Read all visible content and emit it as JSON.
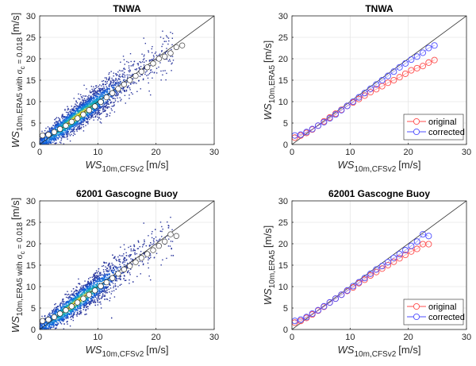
{
  "figure": {
    "panels": [
      {
        "id": "tnwa-scatter",
        "title": "TNWA",
        "kind": "density"
      },
      {
        "id": "tnwa-bins",
        "title": "TNWA",
        "kind": "bins"
      },
      {
        "id": "gascogne-scatter",
        "title": "62001 Gascogne Buoy",
        "kind": "density"
      },
      {
        "id": "gascogne-bins",
        "title": "62001 Gascogne Buoy",
        "kind": "bins"
      }
    ]
  },
  "chart_data": [
    {
      "type": "scatter",
      "title": "TNWA",
      "xlabel": {
        "main": "WS",
        "sub": "10m,CFSv2",
        "unit": "[m/s]"
      },
      "ylabel": {
        "main": "WS",
        "sub": "10m,ERA5 with σ",
        "sub2": "c",
        "extra": " = 0.018",
        "unit": "[m/s]"
      },
      "xlim": [
        0,
        30
      ],
      "ylim": [
        0,
        30
      ],
      "xticks": [
        "0",
        "10",
        "20",
        "30"
      ],
      "yticks": [
        "0",
        "5",
        "10",
        "15",
        "20",
        "25",
        "30"
      ],
      "grid": true,
      "colormap": "parula density",
      "reference_line": "1:1",
      "bin_means": {
        "x": [
          0.5,
          1.5,
          2.5,
          3.5,
          4.5,
          5.5,
          6.5,
          7.5,
          8.5,
          9.5,
          10.5,
          11.5,
          12.5,
          13.5,
          14.5,
          15.5,
          16.5,
          17.5,
          18.5,
          19.5,
          20.5,
          21.5,
          22.5,
          23.5,
          24.5
        ],
        "y": [
          2.1,
          2.3,
          2.9,
          3.6,
          4.4,
          5.3,
          6.1,
          7.0,
          8.0,
          8.9,
          9.9,
          11.0,
          12.0,
          13.0,
          14.0,
          15.0,
          16.0,
          17.0,
          18.0,
          18.9,
          20.0,
          20.5,
          21.3,
          22.7,
          23.1
        ]
      }
    },
    {
      "type": "line",
      "title": "TNWA",
      "xlabel": {
        "main": "WS",
        "sub": "10m,CFSv2",
        "unit": "[m/s]"
      },
      "ylabel": {
        "main": "WS",
        "sub": "10m,ERA5",
        "unit": "[m/s]"
      },
      "xlim": [
        0,
        30
      ],
      "ylim": [
        0,
        30
      ],
      "xticks": [
        "0",
        "10",
        "20",
        "30"
      ],
      "yticks": [
        "0",
        "5",
        "10",
        "15",
        "20",
        "25",
        "30"
      ],
      "grid": true,
      "legend": "bottom-right",
      "reference_line": "1:1",
      "x": [
        0.5,
        1.5,
        2.5,
        3.5,
        4.5,
        5.5,
        6.5,
        7.5,
        8.5,
        9.5,
        10.5,
        11.5,
        12.5,
        13.5,
        14.5,
        15.5,
        16.5,
        17.5,
        18.5,
        19.5,
        20.5,
        21.5,
        22.5,
        23.5,
        24.5
      ],
      "series": [
        {
          "name": "original",
          "color": "#ff4d4d",
          "values": [
            1.6,
            2.1,
            2.7,
            3.5,
            4.4,
            5.4,
            6.3,
            7.2,
            8.1,
            9.0,
            9.8,
            10.6,
            11.4,
            12.2,
            12.9,
            13.6,
            14.4,
            15.0,
            15.7,
            16.5,
            17.3,
            17.8,
            18.3,
            19.1,
            19.7
          ]
        },
        {
          "name": "corrected",
          "color": "#4d4dff",
          "values": [
            2.1,
            2.3,
            2.9,
            3.6,
            4.4,
            5.2,
            6.1,
            7.0,
            8.0,
            9.0,
            10.0,
            11.0,
            12.0,
            13.0,
            14.0,
            15.0,
            16.0,
            17.0,
            18.0,
            18.9,
            19.8,
            20.5,
            21.4,
            22.5,
            23.1
          ]
        }
      ]
    },
    {
      "type": "scatter",
      "title": "62001 Gascogne Buoy",
      "xlabel": {
        "main": "WS",
        "sub": "10m,CFSv2",
        "unit": "[m/s]"
      },
      "ylabel": {
        "main": "WS",
        "sub": "10m,ERA5 with σ",
        "sub2": "c",
        "extra": " = 0.018",
        "unit": "[m/s]"
      },
      "xlim": [
        0,
        30
      ],
      "ylim": [
        0,
        30
      ],
      "xticks": [
        "0",
        "10",
        "20",
        "30"
      ],
      "yticks": [
        "0",
        "5",
        "10",
        "15",
        "20",
        "25",
        "30"
      ],
      "grid": true,
      "colormap": "parula density",
      "reference_line": "1:1",
      "bin_means": {
        "x": [
          0.5,
          1.5,
          2.5,
          3.5,
          4.5,
          5.5,
          6.5,
          7.5,
          8.5,
          9.5,
          10.5,
          11.5,
          12.5,
          13.5,
          14.5,
          15.5,
          16.5,
          17.5,
          18.5,
          19.5,
          20.5,
          21.5,
          22.5,
          23.5
        ],
        "y": [
          2.0,
          2.3,
          2.9,
          3.7,
          4.5,
          5.4,
          6.3,
          7.2,
          8.1,
          9.1,
          10.1,
          11.0,
          12.0,
          13.0,
          14.0,
          14.8,
          15.7,
          16.7,
          17.6,
          18.5,
          19.5,
          20.5,
          22.2,
          21.8
        ]
      }
    },
    {
      "type": "line",
      "title": "62001 Gascogne Buoy",
      "xlabel": {
        "main": "WS",
        "sub": "10m,CFSv2",
        "unit": "[m/s]"
      },
      "ylabel": {
        "main": "WS",
        "sub": "10m,ERA5",
        "unit": "[m/s]"
      },
      "xlim": [
        0,
        30
      ],
      "ylim": [
        0,
        30
      ],
      "xticks": [
        "0",
        "10",
        "20",
        "30"
      ],
      "yticks": [
        "0",
        "5",
        "10",
        "15",
        "20",
        "25",
        "30"
      ],
      "grid": true,
      "legend": "bottom-right",
      "reference_line": "1:1",
      "x": [
        0.5,
        1.5,
        2.5,
        3.5,
        4.5,
        5.5,
        6.5,
        7.5,
        8.5,
        9.5,
        10.5,
        11.5,
        12.5,
        13.5,
        14.5,
        15.5,
        16.5,
        17.5,
        18.5,
        19.5,
        20.5,
        21.5,
        22.5,
        23.5
      ],
      "series": [
        {
          "name": "original",
          "color": "#ff4d4d",
          "values": [
            1.6,
            2.0,
            2.7,
            3.5,
            4.4,
            5.3,
            6.3,
            7.2,
            8.1,
            9.0,
            9.8,
            10.8,
            11.6,
            12.6,
            13.4,
            14.2,
            15.0,
            15.8,
            16.6,
            17.4,
            18.2,
            18.8,
            19.9,
            19.9
          ]
        },
        {
          "name": "corrected",
          "color": "#4d4dff",
          "values": [
            2.0,
            2.3,
            2.9,
            3.7,
            4.5,
            5.4,
            6.3,
            7.2,
            8.1,
            9.1,
            10.1,
            11.0,
            12.0,
            13.0,
            14.0,
            14.8,
            15.7,
            16.7,
            17.6,
            18.5,
            19.5,
            20.5,
            22.2,
            21.8
          ]
        }
      ]
    }
  ]
}
